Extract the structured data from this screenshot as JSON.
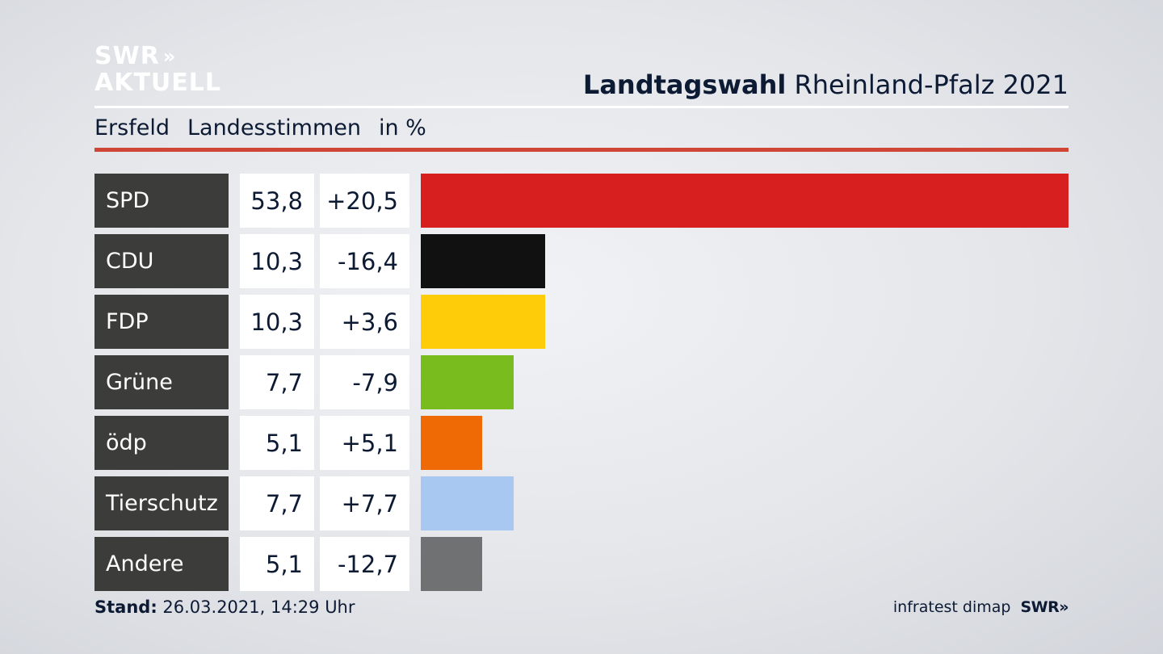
{
  "brand": {
    "logo_line1": "SWR",
    "logo_chevrons": "»",
    "logo_line2": "AKTUELL"
  },
  "header": {
    "title_bold": "Landtagswahl",
    "title_rest": "Rheinland-Pfalz 2021"
  },
  "subtitle": {
    "area": "Ersfeld",
    "measure": "Landesstimmen",
    "unit": "in %"
  },
  "chart_data": {
    "type": "bar",
    "categories": [
      "SPD",
      "CDU",
      "FDP",
      "Grüne",
      "ödp",
      "Tierschutz",
      "Andere"
    ],
    "values": [
      53.8,
      10.3,
      10.3,
      7.7,
      5.1,
      7.7,
      5.1
    ],
    "values_label": [
      "53,8",
      "10,3",
      "10,3",
      "7,7",
      "5,1",
      "7,7",
      "5,1"
    ],
    "changes_label": [
      "+20,5",
      "-16,4",
      "+3,6",
      "-7,9",
      "+5,1",
      "+7,7",
      "-12,7"
    ],
    "colors": [
      "#d71f1f",
      "#111111",
      "#ffcc0a",
      "#78bc1e",
      "#ef6a05",
      "#a9c8f1",
      "#707172"
    ],
    "xlim": [
      0,
      53.8
    ]
  },
  "footer": {
    "stand_label": "Stand:",
    "stand_value": "26.03.2021, 14:29 Uhr",
    "source": "infratest dimap",
    "broadcaster": "SWR»"
  }
}
